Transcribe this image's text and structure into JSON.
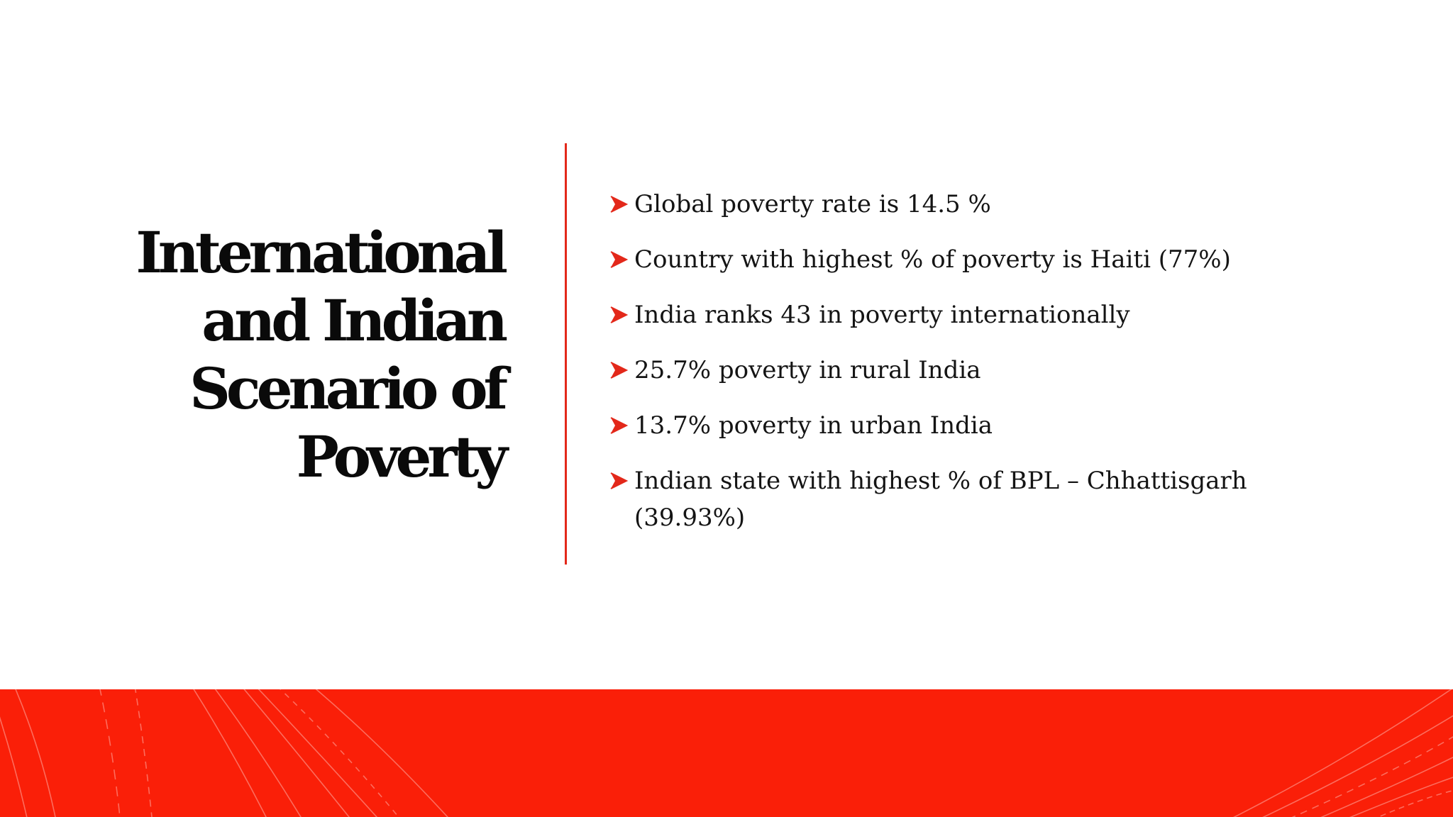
{
  "slide": {
    "title_lines": [
      "International",
      "and Indian",
      "Scenario of",
      "Poverty"
    ],
    "bullets": [
      "Global poverty rate is 14.5 %",
      "Country with highest % of poverty is Haiti (77%)",
      "India ranks 43 in poverty internationally",
      "25.7% poverty in rural India",
      "13.7% poverty in urban India",
      "Indian state with highest % of BPL – Chhattisgarh (39.93%)"
    ],
    "bullet_icon": "arrow-right-icon"
  },
  "colors": {
    "accent": "#e3281a",
    "footer_band": "#fa1f08",
    "text": "#141414",
    "background": "#ffffff"
  }
}
